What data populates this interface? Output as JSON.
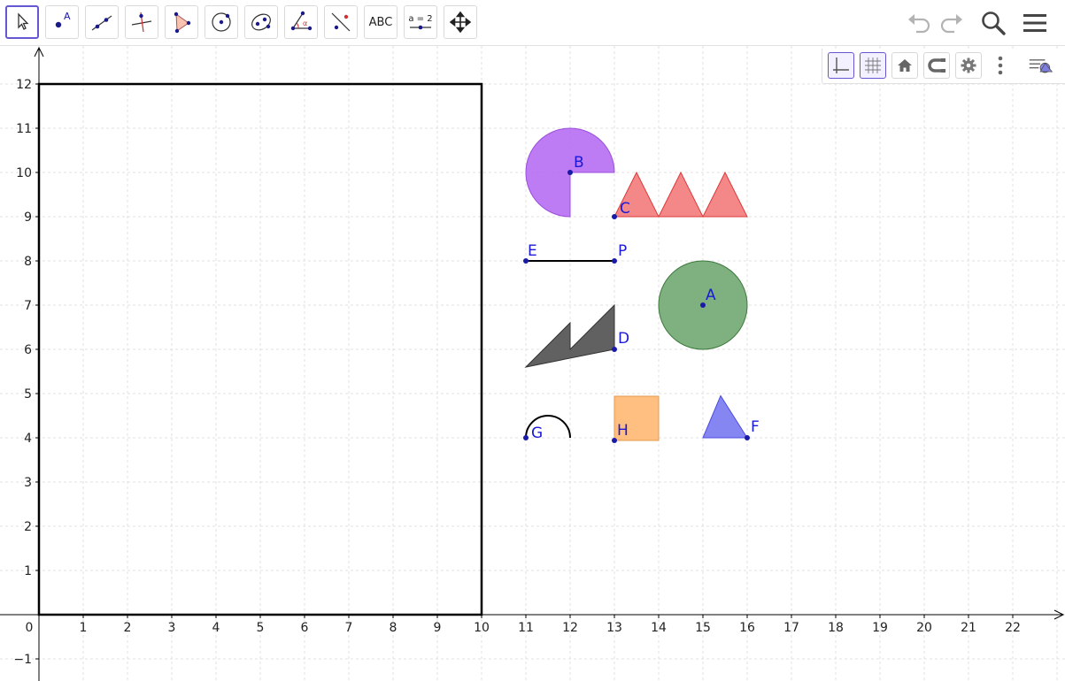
{
  "toolbar": {
    "tools": [
      {
        "name": "move-tool",
        "icon": "cursor-arrow-icon",
        "active": true
      },
      {
        "name": "point-tool",
        "icon": "point-icon",
        "label": "A"
      },
      {
        "name": "line-tool",
        "icon": "line-through-points-icon"
      },
      {
        "name": "perpendicular-line-tool",
        "icon": "perpendicular-line-icon"
      },
      {
        "name": "polygon-tool",
        "icon": "polygon-icon"
      },
      {
        "name": "circle-tool",
        "icon": "circle-center-point-icon"
      },
      {
        "name": "ellipse-tool",
        "icon": "ellipse-icon"
      },
      {
        "name": "angle-tool",
        "icon": "angle-icon",
        "label": "α"
      },
      {
        "name": "reflect-tool",
        "icon": "reflect-about-line-icon"
      },
      {
        "name": "text-tool",
        "icon": "text-icon",
        "label": "ABC"
      },
      {
        "name": "slider-tool",
        "icon": "slider-icon",
        "label": "a = 2"
      },
      {
        "name": "move-graphics-tool",
        "icon": "move-graphics-icon"
      }
    ],
    "right": {
      "undo": "undo-icon",
      "redo": "redo-icon",
      "search": "search-icon",
      "menu": "menu-icon"
    }
  },
  "style_bar": {
    "buttons": [
      {
        "name": "show-axes",
        "icon": "axes-icon",
        "active": true
      },
      {
        "name": "show-grid",
        "icon": "grid-icon",
        "active": true
      },
      {
        "name": "standard-view",
        "icon": "home-icon"
      },
      {
        "name": "point-capturing",
        "icon": "magnet-icon"
      },
      {
        "name": "graphics-settings",
        "icon": "gear-icon"
      },
      {
        "name": "more",
        "icon": "more-vertical-icon"
      },
      {
        "name": "toggle-style-bar",
        "icon": "style-bar-toggle-icon"
      }
    ]
  },
  "graphics": {
    "x_axis": {
      "min": 0,
      "max": 22,
      "ticks": [
        "0",
        "1",
        "2",
        "3",
        "4",
        "5",
        "6",
        "7",
        "8",
        "9",
        "10",
        "11",
        "12",
        "13",
        "14",
        "15",
        "16",
        "17",
        "18",
        "19",
        "20",
        "21",
        "22"
      ]
    },
    "y_axis": {
      "ticks": [
        "−1",
        "1",
        "2",
        "3",
        "4",
        "5",
        "6",
        "7",
        "8",
        "9",
        "10",
        "11",
        "12"
      ]
    },
    "grid": true,
    "colors": {
      "axis": "#000000",
      "grid": "#d9d9d9",
      "point": "#1a1aa8",
      "label": "#1a1ad6"
    },
    "objects": [
      {
        "type": "rectangle",
        "name": "big-rectangle",
        "corners": [
          [
            0,
            0
          ],
          [
            10,
            0
          ],
          [
            10,
            12
          ],
          [
            0,
            12
          ]
        ],
        "stroke": "#000000",
        "fill": "none",
        "width": 2.5
      },
      {
        "type": "sector",
        "name": "sector-B",
        "center": [
          12,
          10
        ],
        "radius": 1,
        "start_deg": 0,
        "end_deg": 270,
        "fill": "#b264f2",
        "stroke": "#9c4fdc",
        "label": "B"
      },
      {
        "type": "triangles",
        "name": "triangles-C",
        "start": [
          13,
          9
        ],
        "count": 3,
        "base": 1,
        "height": 1,
        "fill": "#f38282",
        "stroke": "#dc3a3a",
        "label": "C"
      },
      {
        "type": "segment",
        "name": "segment-EP",
        "from": [
          11,
          8
        ],
        "to": [
          13,
          8
        ],
        "labels": [
          "E",
          "P"
        ]
      },
      {
        "type": "circle",
        "name": "circle-A",
        "center": [
          15,
          7
        ],
        "radius": 1,
        "fill": "#7fb07f",
        "stroke": "#3d7a3d",
        "label": "A"
      },
      {
        "type": "polygon",
        "name": "polygon-D",
        "points": [
          [
            11,
            5.6
          ],
          [
            12,
            6.6
          ],
          [
            12,
            6.0
          ],
          [
            13,
            7
          ],
          [
            13,
            6
          ]
        ],
        "fill": "#595959",
        "stroke": "#333333",
        "label": "D",
        "label_at": [
          13,
          6
        ]
      },
      {
        "type": "arc",
        "name": "arc-G",
        "center": [
          11.5,
          4
        ],
        "radius": 0.5,
        "start_deg": 0,
        "end_deg": 180,
        "stroke": "#000000",
        "label": "G",
        "label_at": [
          11,
          4
        ]
      },
      {
        "type": "square",
        "name": "square-H",
        "corner": [
          13,
          4
        ],
        "size": 1,
        "fill": "#ffbf80",
        "stroke": "#e59a4d",
        "label": "H"
      },
      {
        "type": "polygon",
        "name": "triangle-F",
        "points": [
          [
            15,
            4
          ],
          [
            16,
            4
          ],
          [
            15.4,
            4.95
          ]
        ],
        "fill": "#8080f2",
        "stroke": "#4d4de0",
        "label": "F",
        "label_at": [
          16,
          4
        ]
      }
    ]
  }
}
